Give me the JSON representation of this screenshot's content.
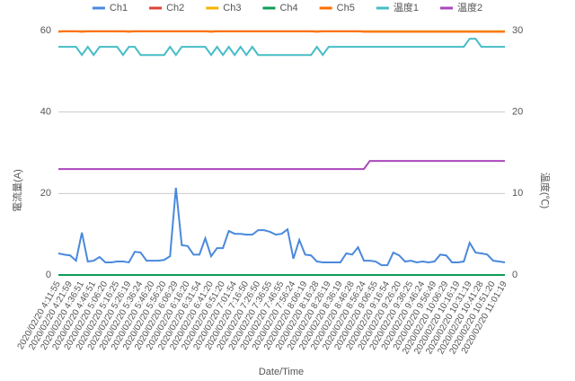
{
  "chart_data": {
    "type": "line",
    "categories": [
      "2020/02/20 4:11:55",
      null,
      "2020/02/20 4:21:59",
      null,
      "2020/02/20 4:36:51",
      null,
      "2020/02/20 4:46:51",
      null,
      "2020/02/20 5:06:20",
      null,
      "2020/02/20 5:16:25",
      null,
      "2020/02/20 5:26:19",
      null,
      "2020/02/20 5:36:24",
      null,
      "2020/02/20 5:46:20",
      null,
      "2020/02/20 5:56:20",
      null,
      "2020/02/20 6:06:29",
      null,
      "2020/02/20 6:16:20",
      null,
      "2020/02/20 6:31:54",
      null,
      "2020/02/20 6:41:20",
      null,
      "2020/02/20 6:51:20",
      null,
      "2020/02/20 7:01:54",
      null,
      "2020/02/20 7:16:50",
      null,
      "2020/02/20 7:26:50",
      null,
      "2020/02/20 7:36:55",
      null,
      "2020/02/20 7:46:55",
      null,
      "2020/02/20 7:56:24",
      null,
      "2020/02/20 8:06:19",
      null,
      "2020/02/20 8:16:28",
      null,
      "2020/02/20 8:26:19",
      null,
      "2020/02/20 8:36:19",
      null,
      "2020/02/20 8:46:28",
      null,
      "2020/02/20 8:56:24",
      null,
      "2020/02/20 9:06:55",
      null,
      "2020/02/20 9:16:54",
      null,
      "2020/02/20 9:26:20",
      null,
      "2020/02/20 9:36:25",
      null,
      "2020/02/20 9:46:24",
      null,
      "2020/02/20 9:56:49",
      null,
      "2020/02/20 10:06:29",
      null,
      "2020/02/20 10:16:19",
      null,
      "2020/02/20 10:31:19",
      null,
      "2020/02/20 10:41:28",
      null,
      "2020/02/20 10:51:20",
      null,
      "2020/02/20 11:01:19"
    ],
    "series": [
      {
        "name": "Ch1",
        "color": "#4a89dc",
        "values": [
          5.3,
          5.0,
          4.8,
          3.5,
          10.4,
          3.3,
          3.5,
          4.4,
          3.1,
          3.1,
          3.3,
          3.3,
          3.1,
          5.7,
          5.5,
          3.5,
          3.5,
          3.5,
          3.7,
          4.6,
          21.4,
          7.3,
          7.1,
          5.0,
          5.0,
          9.0,
          4.6,
          6.6,
          6.6,
          10.8,
          10.1,
          10.1,
          9.9,
          9.9,
          11.0,
          11.0,
          10.6,
          9.9,
          10.1,
          11.2,
          4.0,
          8.6,
          5.0,
          4.8,
          3.3,
          3.1,
          3.1,
          3.1,
          3.1,
          5.3,
          5.0,
          6.8,
          3.5,
          3.5,
          3.3,
          2.4,
          2.4,
          5.5,
          4.8,
          3.3,
          3.5,
          3.1,
          3.3,
          3.1,
          3.3,
          5.0,
          4.8,
          3.1,
          3.1,
          3.3,
          7.9,
          5.5,
          5.3,
          5.0,
          3.5,
          3.3,
          3.1
        ]
      },
      {
        "name": "Ch2",
        "color": "#db4437",
        "values": [
          0,
          0,
          0,
          0,
          0,
          0,
          0,
          0,
          0,
          0,
          0,
          0,
          0,
          0,
          0,
          0,
          0,
          0,
          0,
          0,
          0,
          0,
          0,
          0,
          0,
          0,
          0,
          0,
          0,
          0,
          0,
          0,
          0,
          0,
          0,
          0,
          0,
          0,
          0,
          0,
          0,
          0,
          0,
          0,
          0,
          0,
          0,
          0,
          0,
          0,
          0,
          0,
          0,
          0,
          0,
          0,
          0,
          0,
          0,
          0,
          0,
          0,
          0,
          0,
          0,
          0,
          0,
          0,
          0,
          0,
          0,
          0,
          0,
          0,
          0,
          0,
          0
        ]
      },
      {
        "name": "Ch3",
        "color": "#f4b400",
        "values": [
          59.8,
          59.8,
          59.8,
          59.8,
          59.8,
          59.8,
          59.8,
          59.8,
          59.8,
          59.8,
          59.8,
          59.8,
          59.8,
          59.8,
          59.8,
          59.8,
          59.8,
          59.8,
          59.8,
          59.8,
          59.8,
          59.8,
          59.8,
          59.8,
          59.8,
          59.8,
          59.8,
          59.8,
          59.8,
          59.8,
          59.8,
          59.8,
          59.8,
          59.8,
          59.8,
          59.8,
          59.8,
          59.8,
          59.8,
          59.8,
          59.8,
          59.8,
          59.8,
          59.8,
          59.8,
          59.8,
          59.8,
          59.8,
          59.8,
          59.8,
          59.8,
          59.8,
          59.8,
          59.8,
          59.8,
          59.8,
          59.8,
          59.8,
          59.8,
          59.8,
          59.8,
          59.8,
          59.8,
          59.8,
          59.8,
          59.8,
          59.8,
          59.8,
          59.8,
          59.8,
          59.8,
          59.8,
          59.8,
          59.8,
          59.8,
          59.8,
          59.8
        ]
      },
      {
        "name": "Ch4",
        "color": "#0f9d58",
        "values": [
          0,
          0,
          0,
          0,
          0,
          0,
          0,
          0,
          0,
          0,
          0,
          0,
          0,
          0,
          0,
          0,
          0,
          0,
          0,
          0,
          0,
          0,
          0,
          0,
          0,
          0,
          0,
          0,
          0,
          0,
          0,
          0,
          0,
          0,
          0,
          0,
          0,
          0,
          0,
          0,
          0,
          0,
          0,
          0,
          0,
          0,
          0,
          0,
          0,
          0,
          0,
          0,
          0,
          0,
          0,
          0,
          0,
          0,
          0,
          0,
          0,
          0,
          0,
          0,
          0,
          0,
          0,
          0,
          0,
          0,
          0,
          0,
          0,
          0,
          0,
          0,
          0
        ]
      },
      {
        "name": "Ch5",
        "color": "#ff6d00",
        "values": [
          59.7,
          59.8,
          59.8,
          59.8,
          59.7,
          59.8,
          59.8,
          59.8,
          59.8,
          59.8,
          59.8,
          59.8,
          59.7,
          59.8,
          59.8,
          59.8,
          59.8,
          59.8,
          59.8,
          59.8,
          59.8,
          59.8,
          59.8,
          59.8,
          59.8,
          59.8,
          59.7,
          59.8,
          59.8,
          59.8,
          59.8,
          59.8,
          59.8,
          59.8,
          59.8,
          59.8,
          59.8,
          59.8,
          59.8,
          59.8,
          59.8,
          59.8,
          59.8,
          59.8,
          59.7,
          59.8,
          59.8,
          59.8,
          59.8,
          59.8,
          59.8,
          59.8,
          59.7,
          59.7,
          59.7,
          59.7,
          59.7,
          59.7,
          59.7,
          59.7,
          59.7,
          59.7,
          59.7,
          59.7,
          59.7,
          59.7,
          59.7,
          59.7,
          59.7,
          59.7,
          59.7,
          59.7,
          59.7,
          59.7,
          59.7,
          59.7,
          59.7
        ]
      },
      {
        "name": "温度1",
        "color": "#46bdc6",
        "axis": "y2",
        "values": [
          28,
          28,
          28,
          28,
          27,
          28,
          27,
          28,
          28,
          28,
          28,
          27,
          28,
          28,
          27,
          27,
          27,
          27,
          27,
          28,
          27,
          28,
          28,
          28,
          28,
          28,
          27,
          28,
          27,
          28,
          27,
          28,
          27,
          28,
          27,
          27,
          27,
          27,
          27,
          27,
          27,
          27,
          27,
          27,
          28,
          27,
          28,
          28,
          28,
          28,
          28,
          28,
          28,
          28,
          28,
          28,
          28,
          28,
          28,
          28,
          28,
          28,
          28,
          28,
          28,
          28,
          28,
          28,
          28,
          28,
          29,
          29,
          28,
          28,
          28,
          28,
          28
        ]
      },
      {
        "name": "温度2",
        "color": "#ab47bc",
        "axis": "y2",
        "values": [
          13,
          13,
          13,
          13,
          13,
          13,
          13,
          13,
          13,
          13,
          13,
          13,
          13,
          13,
          13,
          13,
          13,
          13,
          13,
          13,
          13,
          13,
          13,
          13,
          13,
          13,
          13,
          13,
          13,
          13,
          13,
          13,
          13,
          13,
          13,
          13,
          13,
          13,
          13,
          13,
          13,
          13,
          13,
          13,
          13,
          13,
          13,
          13,
          13,
          13,
          13,
          13,
          13,
          14,
          14,
          14,
          14,
          14,
          14,
          14,
          14,
          14,
          14,
          14,
          14,
          14,
          14,
          14,
          14,
          14,
          14,
          14,
          14,
          14,
          14,
          14,
          14
        ]
      }
    ],
    "ylabel": "電流量(A)",
    "y2label": "温度(℃)",
    "xlabel": "Date/Time",
    "ylim": [
      0,
      60
    ],
    "yticks": [
      0,
      20,
      40,
      60
    ],
    "y2lim": [
      0,
      30
    ],
    "y2ticks": [
      0,
      10,
      20,
      30
    ],
    "grid": true,
    "legend": "top"
  }
}
